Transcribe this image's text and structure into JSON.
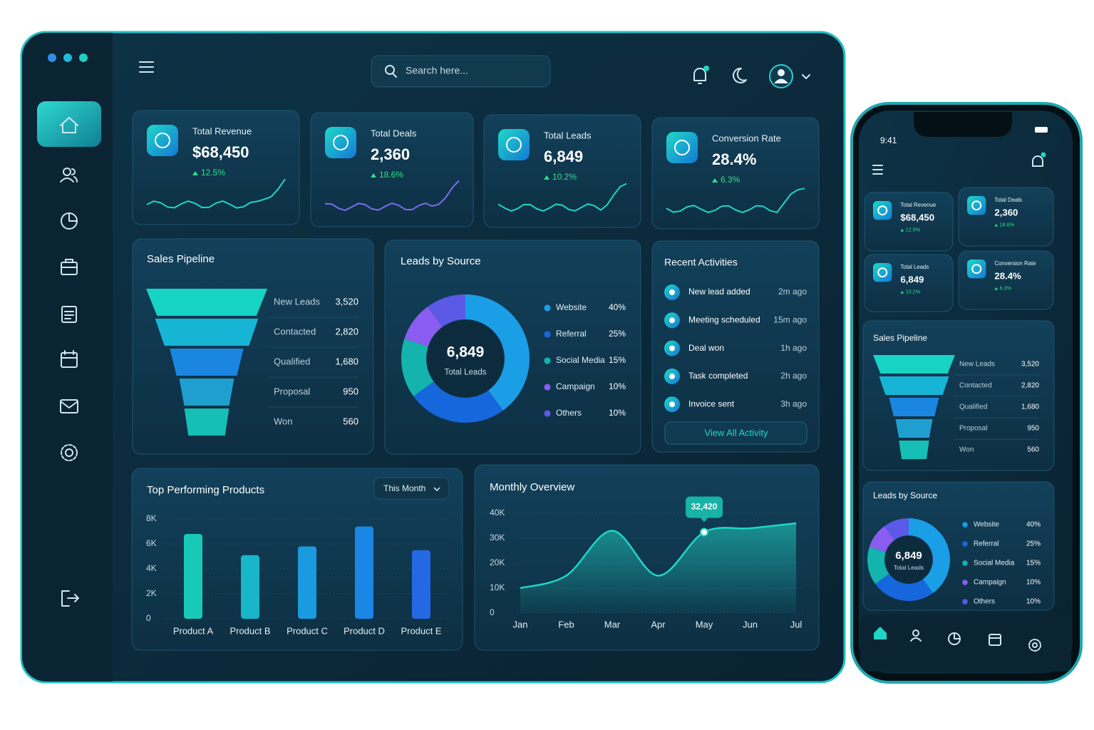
{
  "search_placeholder": "Search here...",
  "kpis": [
    {
      "label": "Total Revenue",
      "value": "$68,450",
      "change": "12.5%"
    },
    {
      "label": "Total Deals",
      "value": "2,360",
      "change": "18.6%"
    },
    {
      "label": "Total Leads",
      "value": "6,849",
      "change": "10.2%"
    },
    {
      "label": "Conversion Rate",
      "value": "28.4%",
      "change": "6.3%"
    }
  ],
  "sales_pipeline": {
    "title": "Sales Pipeline",
    "categories": [
      "New Leads",
      "Contacted",
      "Qualified",
      "Proposal",
      "Won"
    ],
    "values": [
      3520,
      2820,
      1680,
      950,
      560
    ],
    "value_labels": [
      "3,520",
      "2,820",
      "1,680",
      "950",
      "560"
    ],
    "colors": [
      "#17d3c3",
      "#16b5d6",
      "#1b86e2",
      "#1f9fd0",
      "#16bfb5"
    ]
  },
  "leads_by_source": {
    "title": "Leads by Source",
    "total": "6,849",
    "total_label": "Total Leads",
    "categories": [
      "Website",
      "Referral",
      "Social Media",
      "Campaign",
      "Others"
    ],
    "values": [
      40,
      25,
      15,
      10,
      10
    ],
    "value_labels": [
      "40%",
      "25%",
      "15%",
      "10%",
      "10%"
    ],
    "colors": [
      "#1a9ee6",
      "#1667dc",
      "#14b3ad",
      "#8a5cf0",
      "#5a5ae6"
    ]
  },
  "recent_activities": {
    "title": "Recent Activities",
    "items": [
      {
        "text": "New lead added",
        "time": "2m ago"
      },
      {
        "text": "Meeting scheduled",
        "time": "15m ago"
      },
      {
        "text": "Deal won",
        "time": "1h ago"
      },
      {
        "text": "Task completed",
        "time": "2h ago"
      },
      {
        "text": "Invoice sent",
        "time": "3h ago"
      }
    ],
    "button": "View All Activity"
  },
  "top_products": {
    "type": "bar",
    "title": "Top Performing Products",
    "filter": "This Month",
    "categories": [
      "Product A",
      "Product B",
      "Product C",
      "Product D",
      "Product E"
    ],
    "values": [
      6800,
      5100,
      5800,
      7400,
      5500
    ],
    "colors": [
      "#19c9b8",
      "#17b6c8",
      "#1a9be0",
      "#1a86e6",
      "#2468e4"
    ],
    "ylim": [
      0,
      8000
    ],
    "yticks": [
      0,
      {
        "value": 2000,
        "label": "2K"
      },
      {
        "value": 4000,
        "label": "4K"
      },
      {
        "value": 6000,
        "label": "6K"
      },
      {
        "value": 8000,
        "label": "8K"
      }
    ]
  },
  "monthly_overview": {
    "type": "area",
    "title": "Monthly Overview",
    "categories": [
      "Jan",
      "Feb",
      "Mar",
      "Apr",
      "May",
      "Jun",
      "Jul"
    ],
    "values": [
      10000,
      15000,
      33000,
      15000,
      32420,
      34000,
      36000
    ],
    "value_labels": [
      null,
      null,
      null,
      null,
      "32,420",
      null,
      null
    ],
    "color": "#1fd6c6",
    "ylim": [
      0,
      40000
    ],
    "yticks": [
      0,
      {
        "value": 10000,
        "label": "10K"
      },
      {
        "value": 20000,
        "label": "20K"
      },
      {
        "value": 30000,
        "label": "30K"
      },
      {
        "value": 40000,
        "label": "40K"
      }
    ]
  },
  "mobile": {
    "time": "9:41"
  }
}
